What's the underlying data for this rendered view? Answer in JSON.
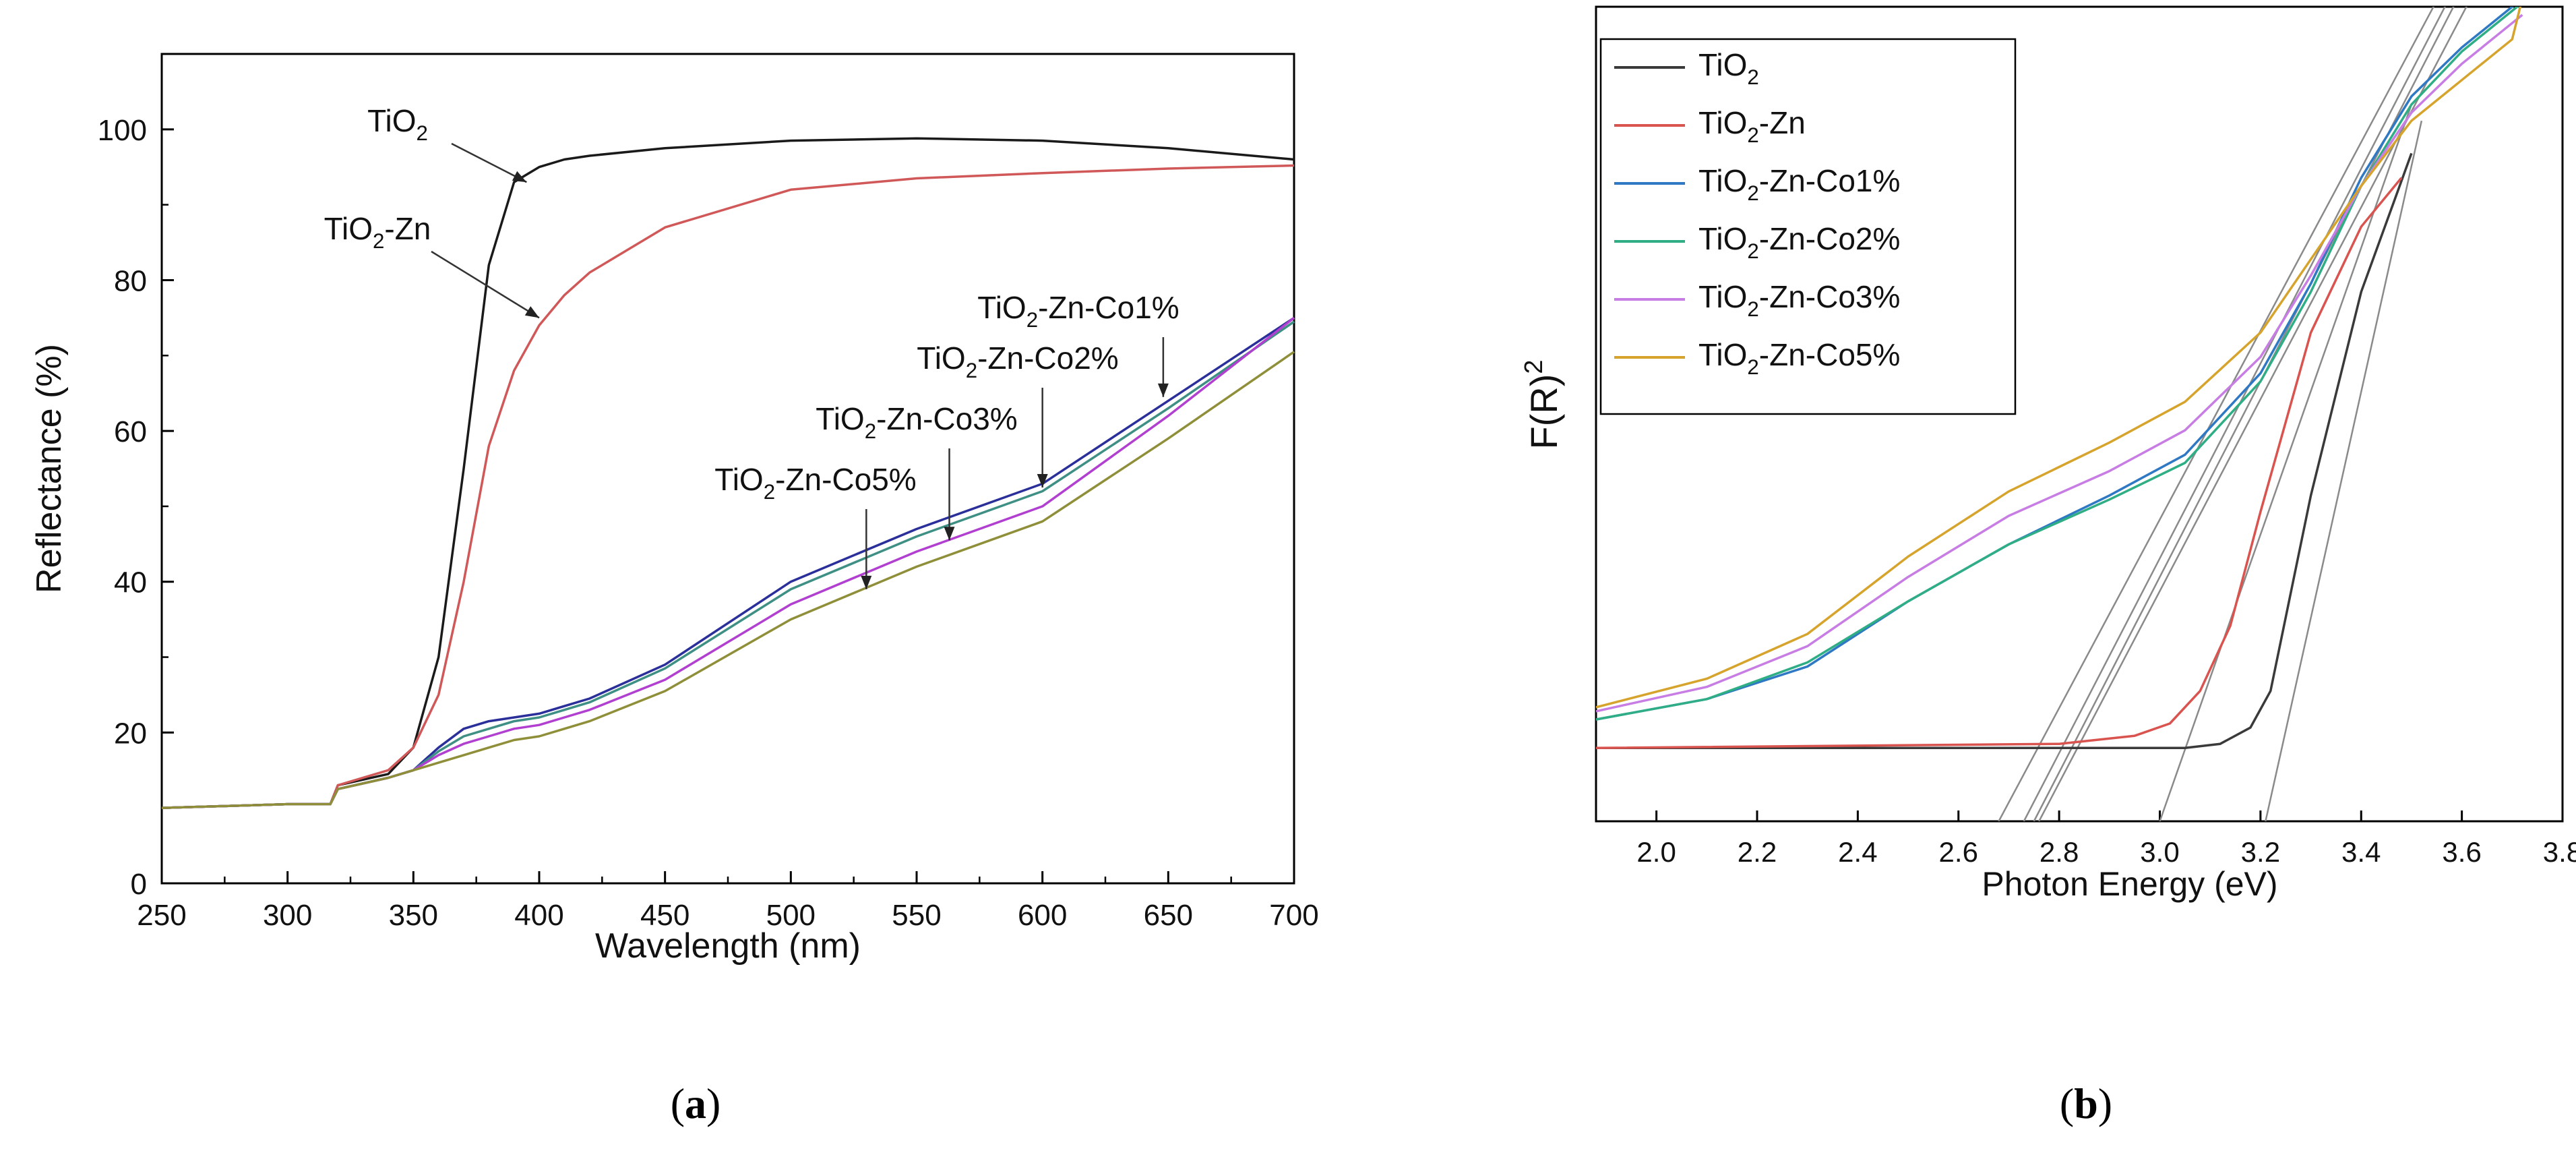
{
  "colors": {
    "TiO2": "#3a3a3a",
    "TiO2-Zn": "#d9534f",
    "Co1": "#2e78c4",
    "Co2": "#2fae86",
    "Co3": "#c77de3",
    "Co5": "#d6a42c",
    "a_Co1": "#2a2f9a",
    "a_Co2": "#3e8f84",
    "a_Co3": "#b13fd0",
    "a_Co5": "#8f8f3a",
    "a_TiO2": "#1a1a1a",
    "a_TiO2Zn": "#d05858",
    "tangent": "#8a8a8a"
  },
  "panel_labels": {
    "a_open": "(",
    "a": "a",
    "a_close": ")",
    "b_open": "(",
    "b": "b",
    "b_close": ")"
  },
  "chart_data": [
    {
      "type": "line",
      "panel": "a",
      "xlabel": "Wavelength (nm)",
      "ylabel": "Reflectance (%)",
      "xlim": [
        250,
        700
      ],
      "ylim": [
        0,
        110
      ],
      "xticks": [
        250,
        300,
        350,
        400,
        450,
        500,
        550,
        600,
        650,
        700
      ],
      "yticks": [
        0,
        20,
        40,
        60,
        80,
        100
      ],
      "x": [
        250,
        300,
        317,
        320,
        340,
        350,
        360,
        370,
        380,
        390,
        400,
        410,
        420,
        450,
        500,
        550,
        600,
        650,
        700
      ],
      "series": [
        {
          "key": "a_TiO2",
          "values": [
            10,
            10.5,
            10.5,
            13,
            14.5,
            18,
            30,
            55,
            82,
            93,
            95,
            96,
            96.5,
            97.5,
            98.5,
            98.8,
            98.5,
            97.5,
            96
          ]
        },
        {
          "key": "a_TiO2Zn",
          "values": [
            10,
            10.5,
            10.5,
            13,
            15,
            18,
            25,
            40,
            58,
            68,
            74,
            78,
            81,
            87,
            92,
            93.5,
            94.2,
            94.8,
            95.2
          ]
        },
        {
          "key": "a_Co1",
          "values": [
            10,
            10.5,
            10.5,
            12.5,
            14,
            15,
            18,
            20.5,
            21.5,
            22,
            22.5,
            23.5,
            24.5,
            29,
            40,
            47,
            53,
            64,
            75
          ]
        },
        {
          "key": "a_Co2",
          "values": [
            10,
            10.5,
            10.5,
            12.5,
            14,
            15,
            17.5,
            19.5,
            20.5,
            21.5,
            22,
            23,
            24,
            28.5,
            39,
            46,
            52,
            63,
            74.5
          ]
        },
        {
          "key": "a_Co3",
          "values": [
            10,
            10.5,
            10.5,
            12.5,
            14,
            15,
            17,
            18.5,
            19.5,
            20.5,
            21,
            22,
            23,
            27,
            37,
            44,
            50,
            62,
            75
          ]
        },
        {
          "key": "a_Co5",
          "values": [
            10,
            10.5,
            10.5,
            12.5,
            14,
            15,
            16,
            17,
            18,
            19,
            19.5,
            20.5,
            21.5,
            25.5,
            35,
            42,
            48,
            59,
            70.5
          ]
        }
      ],
      "annotations": [
        {
          "text": "TiO",
          "sub": "2",
          "rest": "",
          "at": [
            395,
            93
          ]
        },
        {
          "text": "TiO",
          "sub": "2",
          "rest": "-Zn",
          "at": [
            400,
            75
          ]
        },
        {
          "text": "TiO",
          "sub": "2",
          "rest": "-Zn-Co1%",
          "at": [
            648,
            64.5
          ]
        },
        {
          "text": "TiO",
          "sub": "2",
          "rest": "-Zn-Co2%",
          "at": [
            600,
            52.5
          ]
        },
        {
          "text": "TiO",
          "sub": "2",
          "rest": "-Zn-Co3%",
          "at": [
            563,
            45.5
          ]
        },
        {
          "text": "TiO",
          "sub": "2",
          "rest": "-Zn-Co5%",
          "at": [
            530,
            39
          ]
        }
      ]
    },
    {
      "type": "line",
      "panel": "b",
      "xlabel": "Photon Energy (eV)",
      "ylabel": "F(R)",
      "ylabel_sup": "2",
      "xlim": [
        1.88,
        3.8
      ],
      "ylim": [
        0,
        100
      ],
      "xticks": [
        "2.0",
        "2.2",
        "2.4",
        "2.6",
        "2.8",
        "3.0",
        "3.2",
        "3.4",
        "3.6",
        "3.8"
      ],
      "legend_position": "top-left",
      "legend": [
        {
          "key": "TiO2",
          "text": "TiO",
          "sub": "2",
          "rest": ""
        },
        {
          "key": "TiO2-Zn",
          "text": "TiO",
          "sub": "2",
          "rest": "-Zn"
        },
        {
          "key": "Co1",
          "text": "TiO",
          "sub": "2",
          "rest": "-Zn-Co1%"
        },
        {
          "key": "Co2",
          "text": "TiO",
          "sub": "2",
          "rest": "-Zn-Co2%"
        },
        {
          "key": "Co3",
          "text": "TiO",
          "sub": "2",
          "rest": "-Zn-Co3%"
        },
        {
          "key": "Co5",
          "text": "TiO",
          "sub": "2",
          "rest": "-Zn-Co5%"
        }
      ],
      "series": [
        {
          "key": "TiO2",
          "points": [
            [
              1.88,
              9
            ],
            [
              3.05,
              9
            ],
            [
              3.12,
              9.5
            ],
            [
              3.18,
              11.5
            ],
            [
              3.22,
              16
            ],
            [
              3.3,
              40
            ],
            [
              3.4,
              65
            ],
            [
              3.5,
              82
            ]
          ]
        },
        {
          "key": "TiO2-Zn",
          "points": [
            [
              1.88,
              9
            ],
            [
              2.8,
              9.5
            ],
            [
              2.95,
              10.5
            ],
            [
              3.02,
              12
            ],
            [
              3.08,
              16
            ],
            [
              3.14,
              24
            ],
            [
              3.2,
              38
            ],
            [
              3.3,
              60
            ],
            [
              3.4,
              73
            ],
            [
              3.48,
              79
            ]
          ]
        },
        {
          "key": "Co1",
          "points": [
            [
              1.88,
              12.5
            ],
            [
              2.1,
              15
            ],
            [
              2.3,
              19
            ],
            [
              2.5,
              27
            ],
            [
              2.7,
              34
            ],
            [
              2.9,
              40
            ],
            [
              3.05,
              45
            ],
            [
              3.2,
              55
            ],
            [
              3.3,
              66
            ],
            [
              3.4,
              79
            ],
            [
              3.5,
              89
            ],
            [
              3.6,
              95
            ],
            [
              3.7,
              100
            ],
            [
              3.72,
              101
            ]
          ]
        },
        {
          "key": "Co2",
          "points": [
            [
              1.88,
              12.5
            ],
            [
              2.1,
              15
            ],
            [
              2.3,
              19.5
            ],
            [
              2.5,
              27
            ],
            [
              2.7,
              34
            ],
            [
              2.9,
              39.5
            ],
            [
              3.05,
              44
            ],
            [
              3.2,
              54
            ],
            [
              3.3,
              65
            ],
            [
              3.4,
              78
            ],
            [
              3.5,
              88
            ],
            [
              3.6,
              94.5
            ],
            [
              3.7,
              99.5
            ],
            [
              3.72,
              100.5
            ]
          ]
        },
        {
          "key": "Co3",
          "points": [
            [
              1.88,
              13.5
            ],
            [
              2.1,
              16.5
            ],
            [
              2.3,
              21.5
            ],
            [
              2.5,
              30
            ],
            [
              2.7,
              37.5
            ],
            [
              2.9,
              43
            ],
            [
              3.05,
              48
            ],
            [
              3.2,
              57
            ],
            [
              3.3,
              67
            ],
            [
              3.4,
              78
            ],
            [
              3.5,
              87
            ],
            [
              3.6,
              93
            ],
            [
              3.7,
              98
            ],
            [
              3.72,
              99
            ]
          ]
        },
        {
          "key": "Co5",
          "points": [
            [
              1.88,
              14
            ],
            [
              2.1,
              17.5
            ],
            [
              2.3,
              23
            ],
            [
              2.5,
              32.5
            ],
            [
              2.7,
              40.5
            ],
            [
              2.9,
              46.5
            ],
            [
              3.05,
              51.5
            ],
            [
              3.2,
              60
            ],
            [
              3.3,
              69
            ],
            [
              3.4,
              78
            ],
            [
              3.5,
              86
            ],
            [
              3.6,
              91
            ],
            [
              3.7,
              96
            ],
            [
              3.72,
              101
            ]
          ]
        }
      ],
      "tangents": [
        {
          "key": "TiO2",
          "points": [
            [
              3.21,
              0
            ],
            [
              3.52,
              86
            ]
          ]
        },
        {
          "key": "TiO2-Zn",
          "points": [
            [
              3.0,
              0
            ],
            [
              3.5,
              88
            ]
          ]
        },
        {
          "key": "Co1",
          "points": [
            [
              2.73,
              0
            ],
            [
              3.65,
              110
            ]
          ]
        },
        {
          "key": "Co2",
          "points": [
            [
              2.75,
              0
            ],
            [
              3.65,
              108
            ]
          ]
        },
        {
          "key": "Co3",
          "points": [
            [
              2.68,
              0
            ],
            [
              3.63,
              110
            ]
          ]
        },
        {
          "key": "Co5",
          "points": [
            [
              2.76,
              0
            ],
            [
              3.66,
              106
            ]
          ]
        }
      ]
    }
  ]
}
